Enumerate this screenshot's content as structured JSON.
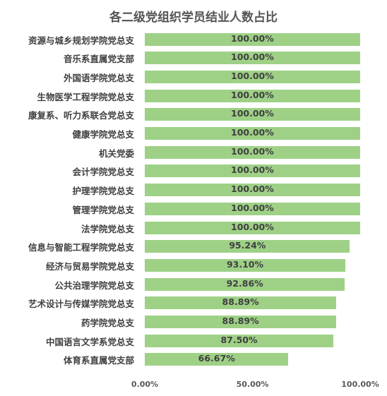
{
  "chart_data": {
    "type": "bar",
    "orientation": "horizontal",
    "title": "各二级党组织学员结业人数占比",
    "categories": [
      "资源与城乡规划学院党总支",
      "音乐系直属党支部",
      "外国语学院党总支",
      "生物医学工程学院党总支",
      "康复系、听力系联合党总支",
      "健康学院党总支",
      "机关党委",
      "会计学院党总支",
      "护理学院党总支",
      "管理学院党总支",
      "法学院党总支",
      "信息与智能工程学院党总支",
      "经济与贸易学院党总支",
      "公共治理学院党总支",
      "艺术设计与传媒学院党总支",
      "药学院党总支",
      "中国语言文学系党总支",
      "体育系直属党支部"
    ],
    "values": [
      100.0,
      100.0,
      100.0,
      100.0,
      100.0,
      100.0,
      100.0,
      100.0,
      100.0,
      100.0,
      100.0,
      95.24,
      93.1,
      92.86,
      88.89,
      88.89,
      87.5,
      66.67
    ],
    "value_labels": [
      "100.00%",
      "100.00%",
      "100.00%",
      "100.00%",
      "100.00%",
      "100.00%",
      "100.00%",
      "100.00%",
      "100.00%",
      "100.00%",
      "100.00%",
      "95.24%",
      "93.10%",
      "92.86%",
      "88.89%",
      "88.89%",
      "87.50%",
      "66.67%"
    ],
    "xlim": [
      0,
      100
    ],
    "x_ticks": [
      "0.00%",
      "50.00%",
      "100.00%"
    ],
    "x_tick_values": [
      0,
      50,
      100
    ],
    "grid": false,
    "bar_color": "#9ed186"
  }
}
